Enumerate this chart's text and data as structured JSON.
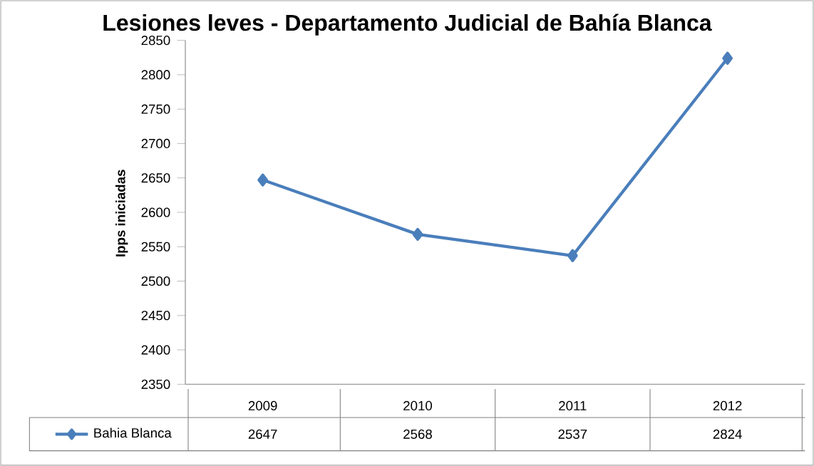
{
  "chart_data": {
    "type": "line",
    "title": "Lesiones leves - Departamento Judicial de Bahía Blanca",
    "ylabel": "Ipps iniciadas",
    "categories": [
      "2009",
      "2010",
      "2011",
      "2012"
    ],
    "series": [
      {
        "name": "Bahia Blanca",
        "color": "#4a7ebb",
        "values": [
          2647,
          2568,
          2537,
          2824
        ]
      }
    ],
    "ylim": [
      2350,
      2850
    ],
    "yticks": [
      2350,
      2400,
      2450,
      2500,
      2550,
      2600,
      2650,
      2700,
      2750,
      2800,
      2850
    ],
    "marker": "diamond",
    "line_style": "solid",
    "legend": "bottom left",
    "data_labels": true
  }
}
